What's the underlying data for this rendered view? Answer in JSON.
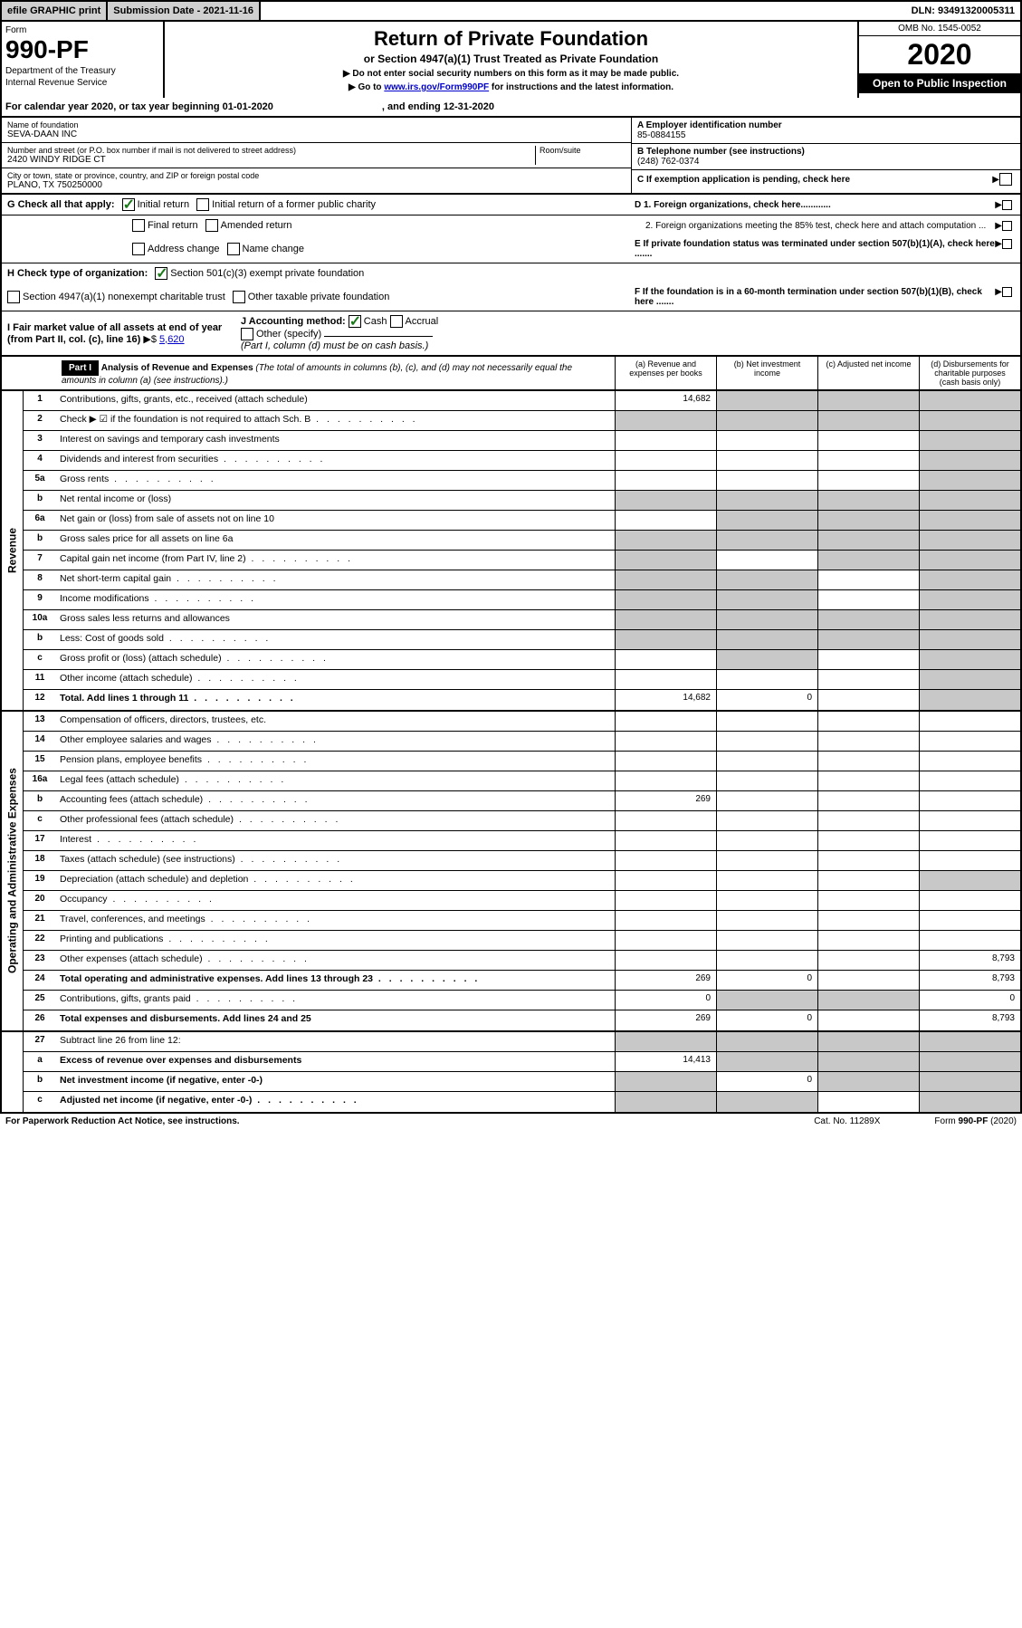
{
  "topbar": {
    "efile": "efile GRAPHIC print",
    "submission": "Submission Date - 2021-11-16",
    "dln": "DLN: 93491320005311"
  },
  "header": {
    "form_label": "Form",
    "form_num": "990-PF",
    "dept": "Department of the Treasury",
    "irs": "Internal Revenue Service",
    "title": "Return of Private Foundation",
    "subtitle": "or Section 4947(a)(1) Trust Treated as Private Foundation",
    "instr1": "▶ Do not enter social security numbers on this form as it may be made public.",
    "instr2_pre": "▶ Go to ",
    "instr2_link": "www.irs.gov/Form990PF",
    "instr2_post": " for instructions and the latest information.",
    "omb": "OMB No. 1545-0052",
    "year": "2020",
    "open": "Open to Public Inspection"
  },
  "cal_year": {
    "text_a": "For calendar year 2020, or tax year beginning 01-01-2020",
    "text_b": ", and ending 12-31-2020"
  },
  "foundation": {
    "name_label": "Name of foundation",
    "name": "SEVA-DAAN INC",
    "addr_label": "Number and street (or P.O. box number if mail is not delivered to street address)",
    "addr": "2420 WINDY RIDGE CT",
    "room_label": "Room/suite",
    "city_label": "City or town, state or province, country, and ZIP or foreign postal code",
    "city": "PLANO, TX  750250000",
    "ein_label": "A Employer identification number",
    "ein": "85-0884155",
    "phone_label": "B Telephone number (see instructions)",
    "phone": "(248) 762-0374",
    "c_label": "C If exemption application is pending, check here",
    "d1": "D 1. Foreign organizations, check here............",
    "d2": "2. Foreign organizations meeting the 85% test, check here and attach computation ...",
    "e_label": "E  If private foundation status was terminated under section 507(b)(1)(A), check here .......",
    "f_label": "F  If the foundation is in a 60-month termination under section 507(b)(1)(B), check here .......",
    "g_label": "G Check all that apply:",
    "g_initial": "Initial return",
    "g_initial_former": "Initial return of a former public charity",
    "g_final": "Final return",
    "g_amended": "Amended return",
    "g_addr": "Address change",
    "g_name": "Name change",
    "h_label": "H Check type of organization:",
    "h_501c3": "Section 501(c)(3) exempt private foundation",
    "h_4947": "Section 4947(a)(1) nonexempt charitable trust",
    "h_other": "Other taxable private foundation",
    "i_label": "I Fair market value of all assets at end of year (from Part II, col. (c), line 16)",
    "i_val": "5,620",
    "j_label": "J Accounting method:",
    "j_cash": "Cash",
    "j_accrual": "Accrual",
    "j_other": "Other (specify)",
    "j_note": "(Part I, column (d) must be on cash basis.)"
  },
  "part1": {
    "label": "Part I",
    "title": "Analysis of Revenue and Expenses",
    "title_note": " (The total of amounts in columns (b), (c), and (d) may not necessarily equal the amounts in column (a) (see instructions).)",
    "col_a": "(a)   Revenue and expenses per books",
    "col_b": "(b)  Net investment income",
    "col_c": "(c)  Adjusted net income",
    "col_d": "(d)  Disbursements for charitable purposes (cash basis only)"
  },
  "sections": {
    "revenue": "Revenue",
    "expenses": "Operating and Administrative Expenses"
  },
  "rows": [
    {
      "n": "1",
      "d": "Contributions, gifts, grants, etc., received (attach schedule)",
      "a": "14,682",
      "shade_b": true,
      "shade_c": true,
      "shade_d": true
    },
    {
      "n": "2",
      "d": "Check ▶ ☑ if the foundation is not required to attach Sch. B",
      "shade_a": true,
      "shade_b": true,
      "shade_c": true,
      "shade_d": true,
      "dots": true
    },
    {
      "n": "3",
      "d": "Interest on savings and temporary cash investments",
      "shade_d": true
    },
    {
      "n": "4",
      "d": "Dividends and interest from securities",
      "shade_d": true,
      "dots": true
    },
    {
      "n": "5a",
      "d": "Gross rents",
      "shade_d": true,
      "dots": true
    },
    {
      "n": "b",
      "d": "Net rental income or (loss)",
      "shade_a": true,
      "shade_b": true,
      "shade_c": true,
      "shade_d": true
    },
    {
      "n": "6a",
      "d": "Net gain or (loss) from sale of assets not on line 10",
      "shade_b": true,
      "shade_c": true,
      "shade_d": true
    },
    {
      "n": "b",
      "d": "Gross sales price for all assets on line 6a",
      "shade_a": true,
      "shade_b": true,
      "shade_c": true,
      "shade_d": true
    },
    {
      "n": "7",
      "d": "Capital gain net income (from Part IV, line 2)",
      "shade_a": true,
      "shade_c": true,
      "shade_d": true,
      "dots": true
    },
    {
      "n": "8",
      "d": "Net short-term capital gain",
      "shade_a": true,
      "shade_b": true,
      "shade_d": true,
      "dots": true
    },
    {
      "n": "9",
      "d": "Income modifications",
      "shade_a": true,
      "shade_b": true,
      "shade_d": true,
      "dots": true
    },
    {
      "n": "10a",
      "d": "Gross sales less returns and allowances",
      "shade_a": true,
      "shade_b": true,
      "shade_c": true,
      "shade_d": true
    },
    {
      "n": "b",
      "d": "Less: Cost of goods sold",
      "shade_a": true,
      "shade_b": true,
      "shade_c": true,
      "shade_d": true,
      "dots": true
    },
    {
      "n": "c",
      "d": "Gross profit or (loss) (attach schedule)",
      "shade_b": true,
      "shade_d": true,
      "dots": true
    },
    {
      "n": "11",
      "d": "Other income (attach schedule)",
      "shade_d": true,
      "dots": true
    },
    {
      "n": "12",
      "d": "Total. Add lines 1 through 11",
      "bold": true,
      "a": "14,682",
      "b": "0",
      "shade_d": true,
      "dots": true
    }
  ],
  "exp_rows": [
    {
      "n": "13",
      "d": "Compensation of officers, directors, trustees, etc."
    },
    {
      "n": "14",
      "d": "Other employee salaries and wages",
      "dots": true
    },
    {
      "n": "15",
      "d": "Pension plans, employee benefits",
      "dots": true
    },
    {
      "n": "16a",
      "d": "Legal fees (attach schedule)",
      "dots": true
    },
    {
      "n": "b",
      "d": "Accounting fees (attach schedule)",
      "a": "269",
      "dots": true
    },
    {
      "n": "c",
      "d": "Other professional fees (attach schedule)",
      "dots": true
    },
    {
      "n": "17",
      "d": "Interest",
      "dots": true
    },
    {
      "n": "18",
      "d": "Taxes (attach schedule) (see instructions)",
      "dots": true
    },
    {
      "n": "19",
      "d": "Depreciation (attach schedule) and depletion",
      "shade_d": true,
      "dots": true
    },
    {
      "n": "20",
      "d": "Occupancy",
      "dots": true
    },
    {
      "n": "21",
      "d": "Travel, conferences, and meetings",
      "dots": true
    },
    {
      "n": "22",
      "d": "Printing and publications",
      "dots": true
    },
    {
      "n": "23",
      "d": "Other expenses (attach schedule)",
      "d_val": "8,793",
      "dots": true
    },
    {
      "n": "24",
      "d": "Total operating and administrative expenses. Add lines 13 through 23",
      "bold": true,
      "a": "269",
      "b": "0",
      "d_val": "8,793",
      "dots": true
    },
    {
      "n": "25",
      "d": "Contributions, gifts, grants paid",
      "a": "0",
      "shade_b": true,
      "shade_c": true,
      "d_val": "0",
      "dots": true
    },
    {
      "n": "26",
      "d": "Total expenses and disbursements. Add lines 24 and 25",
      "bold": true,
      "a": "269",
      "b": "0",
      "d_val": "8,793"
    }
  ],
  "bottom_rows": [
    {
      "n": "27",
      "d": "Subtract line 26 from line 12:",
      "shade_a": true,
      "shade_b": true,
      "shade_c": true,
      "shade_d": true
    },
    {
      "n": "a",
      "d": "Excess of revenue over expenses and disbursements",
      "bold": true,
      "a": "14,413",
      "shade_b": true,
      "shade_c": true,
      "shade_d": true
    },
    {
      "n": "b",
      "d": "Net investment income (if negative, enter -0-)",
      "bold": true,
      "shade_a": true,
      "b": "0",
      "shade_c": true,
      "shade_d": true
    },
    {
      "n": "c",
      "d": "Adjusted net income (if negative, enter -0-)",
      "bold": true,
      "shade_a": true,
      "shade_b": true,
      "shade_d": true,
      "dots": true
    }
  ],
  "footer": {
    "left": "For Paperwork Reduction Act Notice, see instructions.",
    "mid": "Cat. No. 11289X",
    "right": "Form 990-PF (2020)"
  }
}
